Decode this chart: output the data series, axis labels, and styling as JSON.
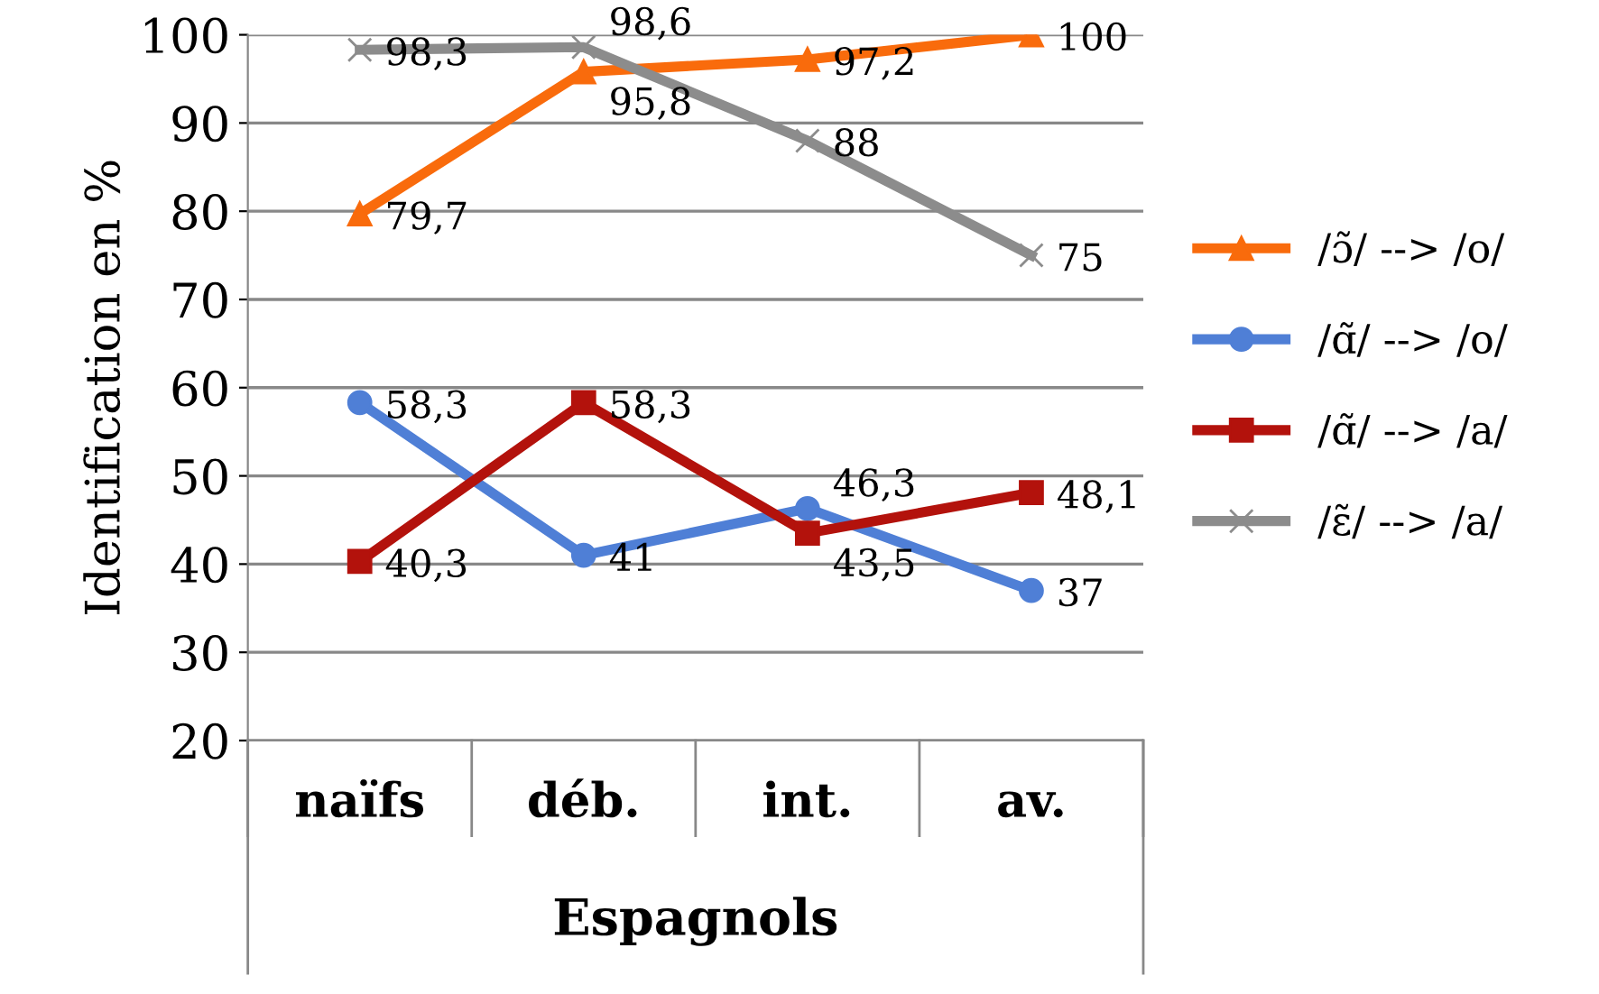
{
  "chart_data": {
    "type": "line",
    "ylabel": "Identification en %",
    "xlabel": "Espagnols",
    "categories": [
      "naïfs",
      "déb.",
      "int.",
      "av."
    ],
    "series": [
      {
        "name": "/ɔ̃/ --> /o/",
        "color": "#f96b0c",
        "marker": "triangle",
        "values": [
          79.7,
          95.8,
          97.2,
          100
        ],
        "value_labels": [
          "79,7",
          "95,8",
          "97,2",
          "100"
        ]
      },
      {
        "name": "/ɑ̃/ --> /o/",
        "color": "#4f7fd6",
        "marker": "circle",
        "values": [
          58.3,
          41,
          46.3,
          37
        ],
        "value_labels": [
          "58,3",
          "41",
          "46,3",
          "37"
        ]
      },
      {
        "name": "/ɑ̃/ --> /a/",
        "color": "#b3120c",
        "marker": "square",
        "values": [
          40.3,
          58.3,
          43.5,
          48.1
        ],
        "value_labels": [
          "40,3",
          "58,3",
          "43,5",
          "48,1"
        ]
      },
      {
        "name": "/ɛ̃/ --> /a/",
        "color": "#8c8c8c",
        "marker": "cross",
        "values": [
          98.3,
          98.6,
          88,
          75
        ],
        "value_labels": [
          "98,3",
          "98,6",
          "88",
          "75"
        ]
      }
    ],
    "ylim": [
      20,
      100
    ],
    "yticks": [
      20,
      30,
      40,
      50,
      60,
      70,
      80,
      90,
      100
    ],
    "grid": "y",
    "legend": "right",
    "line_style": "solid"
  }
}
